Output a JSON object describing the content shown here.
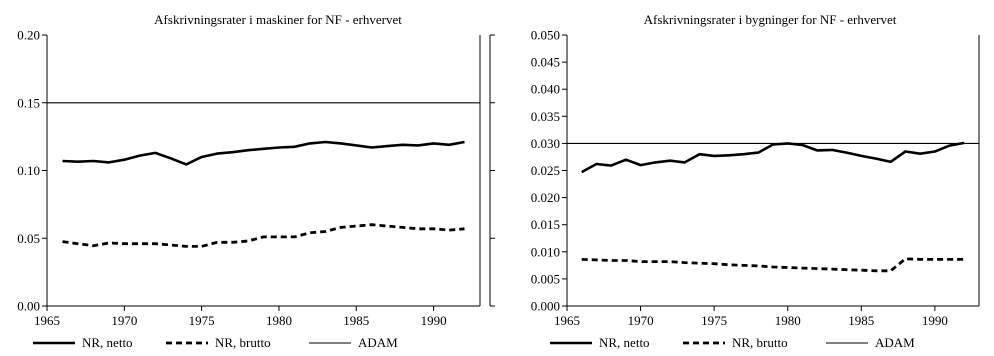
{
  "chart_data": [
    {
      "type": "line",
      "title": "Afskrivningsrater i maskiner for NF - erhvervet",
      "xlabel": "",
      "ylabel": "",
      "xlim": [
        1965,
        1993
      ],
      "ylim": [
        0,
        0.2
      ],
      "x_ticks": [
        "1965",
        "1970",
        "1975",
        "1980",
        "1985",
        "1990"
      ],
      "y_ticks": [
        "0.00",
        "0.05",
        "0.10",
        "0.15",
        "0.20"
      ],
      "grid": false,
      "legend_position": "bottom",
      "x": [
        1966,
        1967,
        1968,
        1969,
        1970,
        1971,
        1972,
        1973,
        1974,
        1975,
        1976,
        1977,
        1978,
        1979,
        1980,
        1981,
        1982,
        1983,
        1984,
        1985,
        1986,
        1987,
        1988,
        1989,
        1990,
        1991,
        1992
      ],
      "series": [
        {
          "name": "NR, netto",
          "style": "solid-thick",
          "values": [
            0.107,
            0.1065,
            0.107,
            0.106,
            0.108,
            0.111,
            0.113,
            0.109,
            0.1045,
            0.11,
            0.1125,
            0.1135,
            0.115,
            0.116,
            0.117,
            0.1175,
            0.12,
            0.121,
            0.12,
            0.1185,
            0.117,
            0.118,
            0.119,
            0.1185,
            0.12,
            0.119,
            0.121
          ]
        },
        {
          "name": "NR, brutto",
          "style": "dashed-thick",
          "values": [
            0.0475,
            0.046,
            0.0445,
            0.0465,
            0.046,
            0.046,
            0.046,
            0.045,
            0.044,
            0.044,
            0.047,
            0.047,
            0.048,
            0.051,
            0.051,
            0.051,
            0.054,
            0.055,
            0.058,
            0.059,
            0.06,
            0.059,
            0.058,
            0.057,
            0.057,
            0.056,
            0.057
          ]
        },
        {
          "name": "ADAM",
          "style": "solid-thin",
          "values": [
            0.15,
            0.15,
            0.15,
            0.15,
            0.15,
            0.15,
            0.15,
            0.15,
            0.15,
            0.15,
            0.15,
            0.15,
            0.15,
            0.15,
            0.15,
            0.15,
            0.15,
            0.15,
            0.15,
            0.15,
            0.15,
            0.15,
            0.15,
            0.15,
            0.15,
            0.15,
            0.15
          ]
        }
      ]
    },
    {
      "type": "line",
      "title": "Afskrivningsrater i bygninger for NF - erhvervet",
      "xlabel": "",
      "ylabel": "",
      "xlim": [
        1965,
        1993
      ],
      "ylim": [
        0,
        0.05
      ],
      "x_ticks": [
        "1965",
        "1970",
        "1975",
        "1980",
        "1985",
        "1990"
      ],
      "y_ticks": [
        "0.000",
        "0.005",
        "0.010",
        "0.015",
        "0.020",
        "0.025",
        "0.030",
        "0.035",
        "0.040",
        "0.045",
        "0.050"
      ],
      "grid": false,
      "legend_position": "bottom",
      "x": [
        1966,
        1967,
        1968,
        1969,
        1970,
        1971,
        1972,
        1973,
        1974,
        1975,
        1976,
        1977,
        1978,
        1979,
        1980,
        1981,
        1982,
        1983,
        1984,
        1985,
        1986,
        1987,
        1988,
        1989,
        1990,
        1991,
        1992
      ],
      "series": [
        {
          "name": "NR, netto",
          "style": "solid-thick",
          "values": [
            0.0247,
            0.0262,
            0.0259,
            0.027,
            0.026,
            0.0265,
            0.0268,
            0.0265,
            0.028,
            0.0277,
            0.0278,
            0.028,
            0.0283,
            0.0298,
            0.03,
            0.0297,
            0.0287,
            0.0288,
            0.0283,
            0.0277,
            0.0272,
            0.0266,
            0.0285,
            0.0281,
            0.0285,
            0.0296,
            0.0301
          ]
        },
        {
          "name": "NR, brutto",
          "style": "dashed-thick",
          "values": [
            0.0086,
            0.0085,
            0.0084,
            0.0084,
            0.0082,
            0.0082,
            0.0082,
            0.008,
            0.0079,
            0.0078,
            0.0076,
            0.0075,
            0.0074,
            0.0072,
            0.0071,
            0.007,
            0.0069,
            0.0068,
            0.0067,
            0.0066,
            0.0065,
            0.0065,
            0.0087,
            0.0086,
            0.0086,
            0.0086,
            0.0086
          ]
        },
        {
          "name": "ADAM",
          "style": "solid-thin",
          "values": [
            0.03,
            0.03,
            0.03,
            0.03,
            0.03,
            0.03,
            0.03,
            0.03,
            0.03,
            0.03,
            0.03,
            0.03,
            0.03,
            0.03,
            0.03,
            0.03,
            0.03,
            0.03,
            0.03,
            0.03,
            0.03,
            0.03,
            0.03,
            0.03,
            0.03,
            0.03,
            0.03
          ]
        }
      ]
    }
  ]
}
